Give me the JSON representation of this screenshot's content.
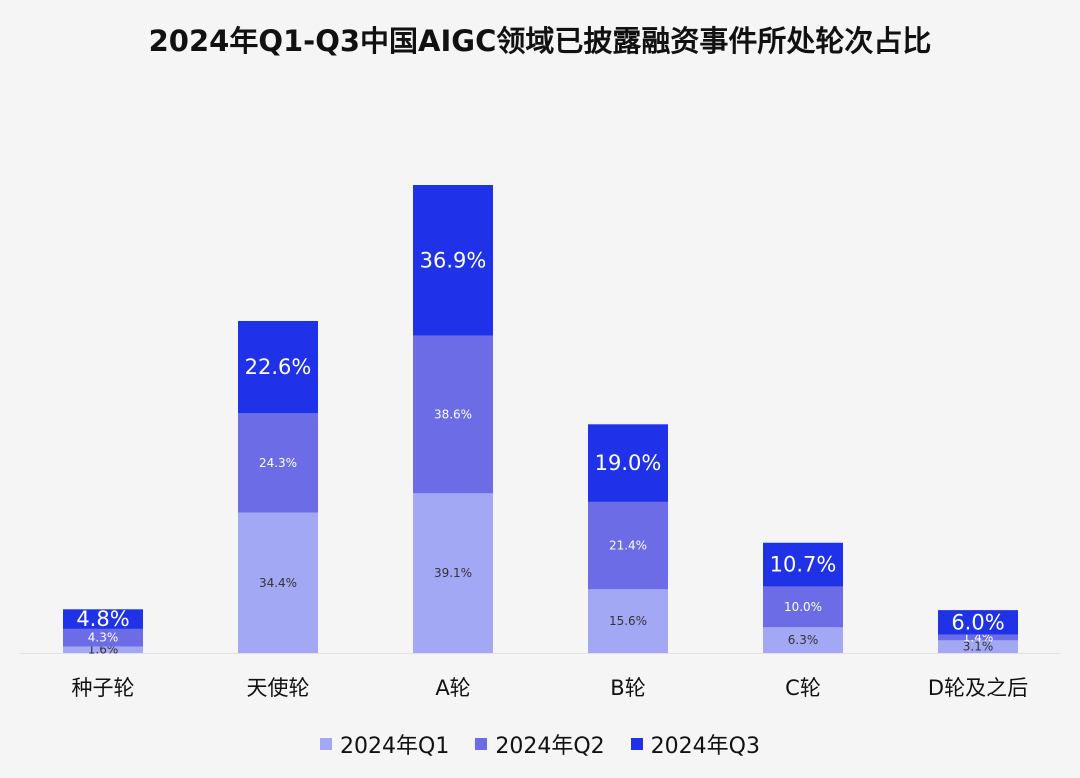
{
  "chart_data": {
    "type": "bar",
    "stacked": true,
    "title": "2024年Q1-Q3中国AIGC领域已披露融资事件所处轮次占比",
    "categories": [
      "种子轮",
      "天使轮",
      "A轮",
      "B轮",
      "C轮",
      "D轮及之后"
    ],
    "series": [
      {
        "name": "2024年Q1",
        "color": "#a3a8f5",
        "values": [
          1.6,
          34.4,
          39.1,
          15.6,
          6.3,
          3.1
        ],
        "labels": [
          "1.6%",
          "34.4%",
          "39.1%",
          "15.6%",
          "6.3%",
          "3.1%"
        ]
      },
      {
        "name": "2024年Q2",
        "color": "#6b6ce6",
        "values": [
          4.3,
          24.3,
          38.6,
          21.4,
          10.0,
          1.4
        ],
        "labels": [
          "4.3%",
          "24.3%",
          "38.6%",
          "21.4%",
          "10.0%",
          "1.4%"
        ]
      },
      {
        "name": "2024年Q3",
        "color": "#1f32e8",
        "values": [
          4.8,
          22.6,
          36.9,
          19.0,
          10.7,
          6.0
        ],
        "labels": [
          "4.8%",
          "22.6%",
          "36.9%",
          "19.0%",
          "10.7%",
          "6.0%"
        ]
      }
    ],
    "legend_position": "bottom",
    "grid": false
  }
}
